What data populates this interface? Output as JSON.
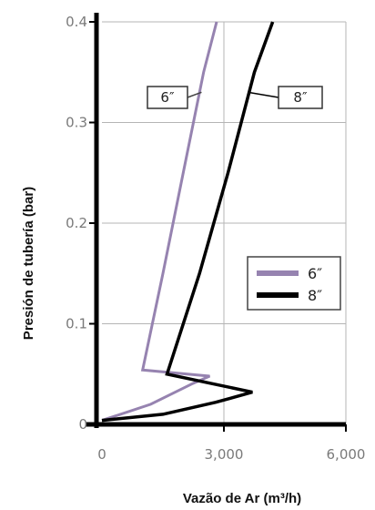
{
  "chart_data": {
    "type": "line",
    "title": "",
    "xlabel": "Vazão de Ar (m³/h)",
    "ylabel": "Presión de tubería (bar)",
    "xlim": [
      0,
      6000
    ],
    "ylim": [
      0,
      0.4
    ],
    "x_ticks": [
      {
        "value": 0,
        "label": "0"
      },
      {
        "value": 3000,
        "label": "3,000"
      },
      {
        "value": 6000,
        "label": "6,000"
      }
    ],
    "y_ticks": [
      {
        "value": 0,
        "label": "0"
      },
      {
        "value": 0.1,
        "label": "0.1"
      },
      {
        "value": 0.2,
        "label": "0.2"
      },
      {
        "value": 0.3,
        "label": "0.3"
      },
      {
        "value": 0.4,
        "label": "0.4"
      }
    ],
    "grid": "vertical and horizontal",
    "legend_position": "center-right",
    "series": [
      {
        "name": "6″",
        "color": "#9683b0",
        "points": [
          [
            0,
            0.004
          ],
          [
            1200,
            0.02
          ],
          [
            2200,
            0.04
          ],
          [
            2650,
            0.048
          ],
          [
            1000,
            0.054
          ],
          [
            1500,
            0.15
          ],
          [
            2000,
            0.25
          ],
          [
            2500,
            0.35
          ],
          [
            2820,
            0.4
          ]
        ]
      },
      {
        "name": "8″",
        "color": "#000000",
        "points": [
          [
            0,
            0.004
          ],
          [
            1500,
            0.01
          ],
          [
            2800,
            0.022
          ],
          [
            3700,
            0.032
          ],
          [
            1600,
            0.05
          ],
          [
            2400,
            0.15
          ],
          [
            3100,
            0.25
          ],
          [
            3750,
            0.35
          ],
          [
            4200,
            0.4
          ]
        ]
      }
    ],
    "callouts": [
      {
        "text": "6″",
        "series": 0,
        "target": [
          2450,
          0.33
        ]
      },
      {
        "text": "8″",
        "series": 1,
        "target": [
          3600,
          0.33
        ]
      }
    ]
  }
}
